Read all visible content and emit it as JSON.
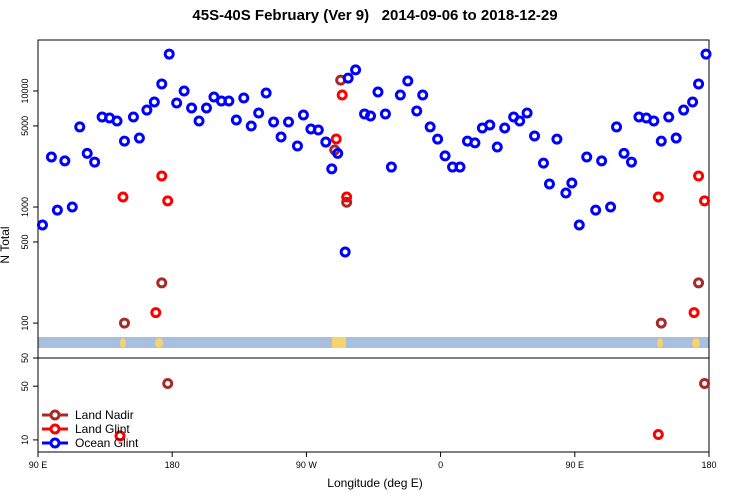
{
  "chart_data": [
    {
      "type": "scatter",
      "title": "45S-40S February (Ver 9)   2014-09-06 to 2018-12-29",
      "x_label": "Longitude (deg E)",
      "y_label": "N Total",
      "xlim": [
        90,
        540
      ],
      "xticks": [
        {
          "value": 90,
          "label": "90 E"
        },
        180,
        {
          "value": 270,
          "label": "90 W"
        },
        {
          "value": 360,
          "label": "0"
        },
        {
          "value": 450,
          "label": "90 E"
        },
        {
          "value": 540,
          "label": "180"
        }
      ],
      "ylim": [
        50,
        27500
      ],
      "yticks": [
        50,
        100,
        500,
        1000,
        5000,
        10000
      ],
      "log_y": true,
      "legend": "bottom-left",
      "series": [
        {
          "name": "Land Nadir",
          "color": "#a52a2a",
          "x": [
            148,
            173,
            289,
            293,
            297,
            508,
            533
          ],
          "values": [
            100,
            222,
            3100,
            12400,
            1100,
            100,
            222
          ]
        },
        {
          "name": "Land Glint",
          "color": "#ff0000",
          "x": [
            147,
            169,
            173,
            177,
            290,
            294,
            297,
            506,
            530,
            533,
            537
          ],
          "values": [
            1220,
            123,
            1850,
            1130,
            3860,
            9240,
            1220,
            1220,
            123,
            1850,
            1130
          ]
        },
        {
          "name": "Ocean Glint",
          "color": "#0000ff",
          "x": [
            93,
            99,
            103,
            108,
            113,
            118,
            123,
            128,
            133,
            138,
            143,
            148,
            154,
            158,
            163,
            168,
            173,
            178,
            183,
            188,
            193,
            198,
            203,
            208,
            213,
            218,
            223,
            228,
            233,
            238,
            243,
            248,
            253,
            258,
            264,
            268,
            273,
            278,
            283,
            287,
            291,
            296,
            298,
            303,
            309,
            313,
            318,
            323,
            327,
            333,
            338,
            344,
            348,
            353,
            358,
            363,
            368,
            373,
            378,
            383,
            388,
            393,
            398,
            403,
            409,
            413,
            418,
            423,
            429,
            433,
            438,
            444,
            448,
            453,
            458,
            464,
            468,
            474,
            478,
            483,
            488,
            493,
            498,
            503,
            508,
            513,
            518,
            523,
            529,
            533,
            538
          ],
          "values": [
            700,
            2700,
            940,
            2500,
            1000,
            4900,
            2900,
            2440,
            5970,
            5850,
            5510,
            3700,
            5970,
            3930,
            6850,
            8040,
            11500,
            20800,
            7880,
            10000,
            7130,
            5510,
            7130,
            8880,
            8200,
            8200,
            5620,
            8700,
            4990,
            6460,
            9610,
            5400,
            4010,
            5400,
            3360,
            6210,
            4700,
            4610,
            3630,
            2130,
            2900,
            410,
            12900,
            15200,
            6340,
            6090,
            9800,
            6340,
            2210,
            9240,
            12200,
            6730,
            9240,
            4900,
            3850,
            2760,
            2210,
            2210,
            3700,
            3570,
            4800,
            5090,
            3290,
            4800,
            5970,
            5510,
            6460,
            4090,
            2390,
            1580,
            3850,
            1320,
            1610,
            700,
            2700,
            940,
            2500,
            1000,
            4900,
            2900,
            2440,
            5970,
            5850,
            5510,
            3700,
            5970,
            3930,
            6850,
            8040,
            11500,
            20800
          ]
        }
      ]
    },
    {
      "type": "scatter",
      "xlim": [
        90,
        540
      ],
      "ylim": [
        1,
        71
      ],
      "yticks": [
        10,
        50
      ],
      "series": [
        {
          "color": "#a52a2a",
          "x": [
            177,
            537
          ],
          "values": [
            52,
            52
          ]
        },
        {
          "color": "#ff0000",
          "x": [
            145,
            506
          ],
          "values": [
            13,
            14
          ]
        }
      ]
    }
  ]
}
